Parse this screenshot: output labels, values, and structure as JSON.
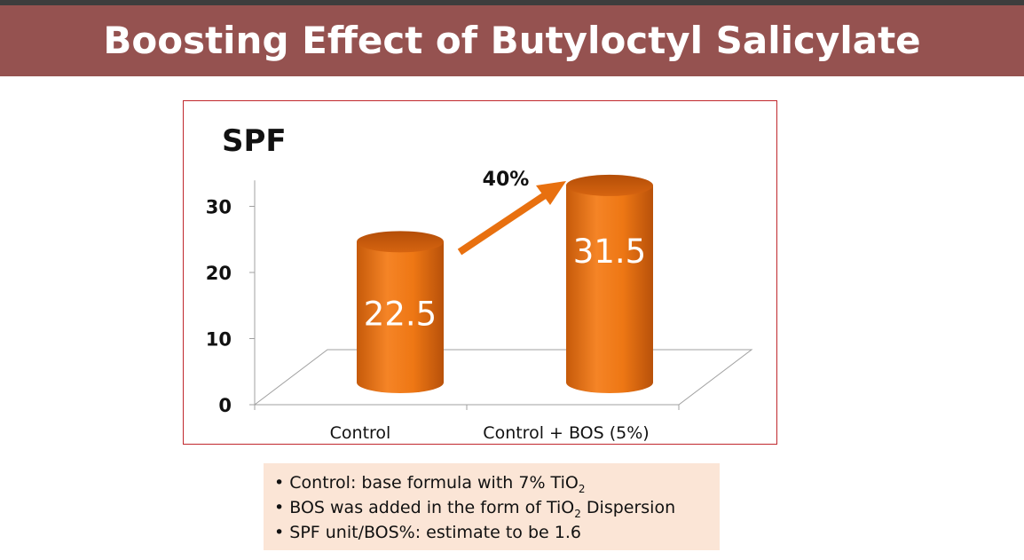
{
  "slide": {
    "title": "Boosting Effect of Butyloctyl Salicylate"
  },
  "chart_data": {
    "type": "bar",
    "title": "",
    "ylabel": "SPF",
    "xlabel": "",
    "categories": [
      "Control",
      "Control + BOS (5%)"
    ],
    "values": [
      22.5,
      31.5
    ],
    "data_labels": [
      "22.5",
      "31.5"
    ],
    "yticks": [
      "0",
      "10",
      "20",
      "30"
    ],
    "ylim": [
      0,
      35
    ],
    "annotation": "40%",
    "bar_color": "#e8700f",
    "grid": false,
    "legend": "none"
  },
  "notes": {
    "bullet": "•",
    "line1": {
      "text": "Control: base formula with 7% TiO",
      "sub": "2"
    },
    "line2": {
      "before": "BOS was added in the form of TiO",
      "sub": "2",
      "after": " Dispersion"
    },
    "line3": {
      "text": "SPF unit/BOS%:  estimate to be 1.6"
    }
  }
}
